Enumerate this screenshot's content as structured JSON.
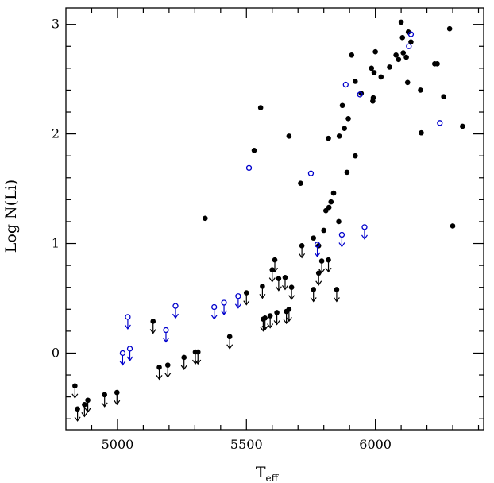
{
  "chart_data": {
    "type": "scatter",
    "title": "",
    "xlabel": "T",
    "xlabel_sub": "eff",
    "ylabel": "Log N(Li)",
    "xlim": [
      4800,
      6420
    ],
    "ylim": [
      -0.7,
      3.15
    ],
    "xticks": [
      5000,
      5500,
      6000
    ],
    "xtick_labels": [
      "5000",
      "5500",
      "6000"
    ],
    "yticks": [
      0,
      1,
      2,
      3
    ],
    "ytick_labels": [
      "0",
      "1",
      "2",
      "3"
    ],
    "grid": false,
    "legend": "none",
    "colors": {
      "black": "#000000",
      "blue": "#0000cc"
    },
    "series": [
      {
        "marker": "filled-circle",
        "color": "#000000",
        "points": [
          [
            5340,
            1.23
          ],
          [
            5530,
            1.85
          ],
          [
            5555,
            2.24
          ],
          [
            5665,
            1.98
          ],
          [
            5710,
            1.55
          ],
          [
            5760,
            1.05
          ],
          [
            5780,
            0.98
          ],
          [
            5800,
            1.12
          ],
          [
            5808,
            1.3
          ],
          [
            5820,
            1.33
          ],
          [
            5828,
            1.38
          ],
          [
            5838,
            1.46
          ],
          [
            5818,
            1.96
          ],
          [
            5858,
            1.2
          ],
          [
            5860,
            1.98
          ],
          [
            5872,
            2.26
          ],
          [
            5880,
            2.05
          ],
          [
            5890,
            1.65
          ],
          [
            5895,
            2.14
          ],
          [
            5908,
            2.72
          ],
          [
            5922,
            2.48
          ],
          [
            5922,
            1.8
          ],
          [
            5945,
            2.37
          ],
          [
            5985,
            2.6
          ],
          [
            5990,
            2.3
          ],
          [
            5992,
            2.33
          ],
          [
            5995,
            2.56
          ],
          [
            6000,
            2.75
          ],
          [
            6022,
            2.52
          ],
          [
            6055,
            2.61
          ],
          [
            6080,
            2.72
          ],
          [
            6090,
            2.68
          ],
          [
            6100,
            3.02
          ],
          [
            6105,
            2.88
          ],
          [
            6108,
            2.74
          ],
          [
            6120,
            2.7
          ],
          [
            6125,
            2.47
          ],
          [
            6128,
            2.93
          ],
          [
            6138,
            2.84
          ],
          [
            6175,
            2.4
          ],
          [
            6178,
            2.01
          ],
          [
            6230,
            2.64
          ],
          [
            6240,
            2.64
          ],
          [
            6265,
            2.34
          ],
          [
            6288,
            2.96
          ],
          [
            6300,
            1.16
          ],
          [
            6338,
            2.07
          ]
        ]
      },
      {
        "marker": "filled-circle-upper-limit",
        "color": "#000000",
        "points": [
          [
            4835,
            -0.3
          ],
          [
            4845,
            -0.51
          ],
          [
            4872,
            -0.47
          ],
          [
            4885,
            -0.43
          ],
          [
            4950,
            -0.38
          ],
          [
            4998,
            -0.36
          ],
          [
            5138,
            0.29
          ],
          [
            5162,
            -0.13
          ],
          [
            5195,
            -0.11
          ],
          [
            5258,
            -0.04
          ],
          [
            5302,
            0.01
          ],
          [
            5312,
            0.01
          ],
          [
            5435,
            0.15
          ],
          [
            5500,
            0.55
          ],
          [
            5562,
            0.61
          ],
          [
            5565,
            0.31
          ],
          [
            5572,
            0.32
          ],
          [
            5592,
            0.34
          ],
          [
            5600,
            0.76
          ],
          [
            5610,
            0.85
          ],
          [
            5618,
            0.37
          ],
          [
            5625,
            0.68
          ],
          [
            5650,
            0.69
          ],
          [
            5655,
            0.38
          ],
          [
            5665,
            0.4
          ],
          [
            5675,
            0.6
          ],
          [
            5715,
            0.98
          ],
          [
            5760,
            0.58
          ],
          [
            5780,
            0.73
          ],
          [
            5792,
            0.84
          ],
          [
            5818,
            0.85
          ],
          [
            5850,
            0.58
          ]
        ]
      },
      {
        "marker": "open-circle",
        "color": "#0000cc",
        "points": [
          [
            5510,
            1.69
          ],
          [
            5750,
            1.64
          ],
          [
            5885,
            2.45
          ],
          [
            5940,
            2.36
          ],
          [
            6130,
            2.8
          ],
          [
            6138,
            2.91
          ],
          [
            6250,
            2.1
          ]
        ]
      },
      {
        "marker": "open-circle-upper-limit",
        "color": "#0000cc",
        "points": [
          [
            5020,
            0.0
          ],
          [
            5040,
            0.33
          ],
          [
            5048,
            0.04
          ],
          [
            5188,
            0.21
          ],
          [
            5225,
            0.43
          ],
          [
            5375,
            0.42
          ],
          [
            5413,
            0.46
          ],
          [
            5468,
            0.52
          ],
          [
            5775,
            0.99
          ],
          [
            5870,
            1.08
          ],
          [
            5958,
            1.15
          ]
        ]
      }
    ]
  }
}
